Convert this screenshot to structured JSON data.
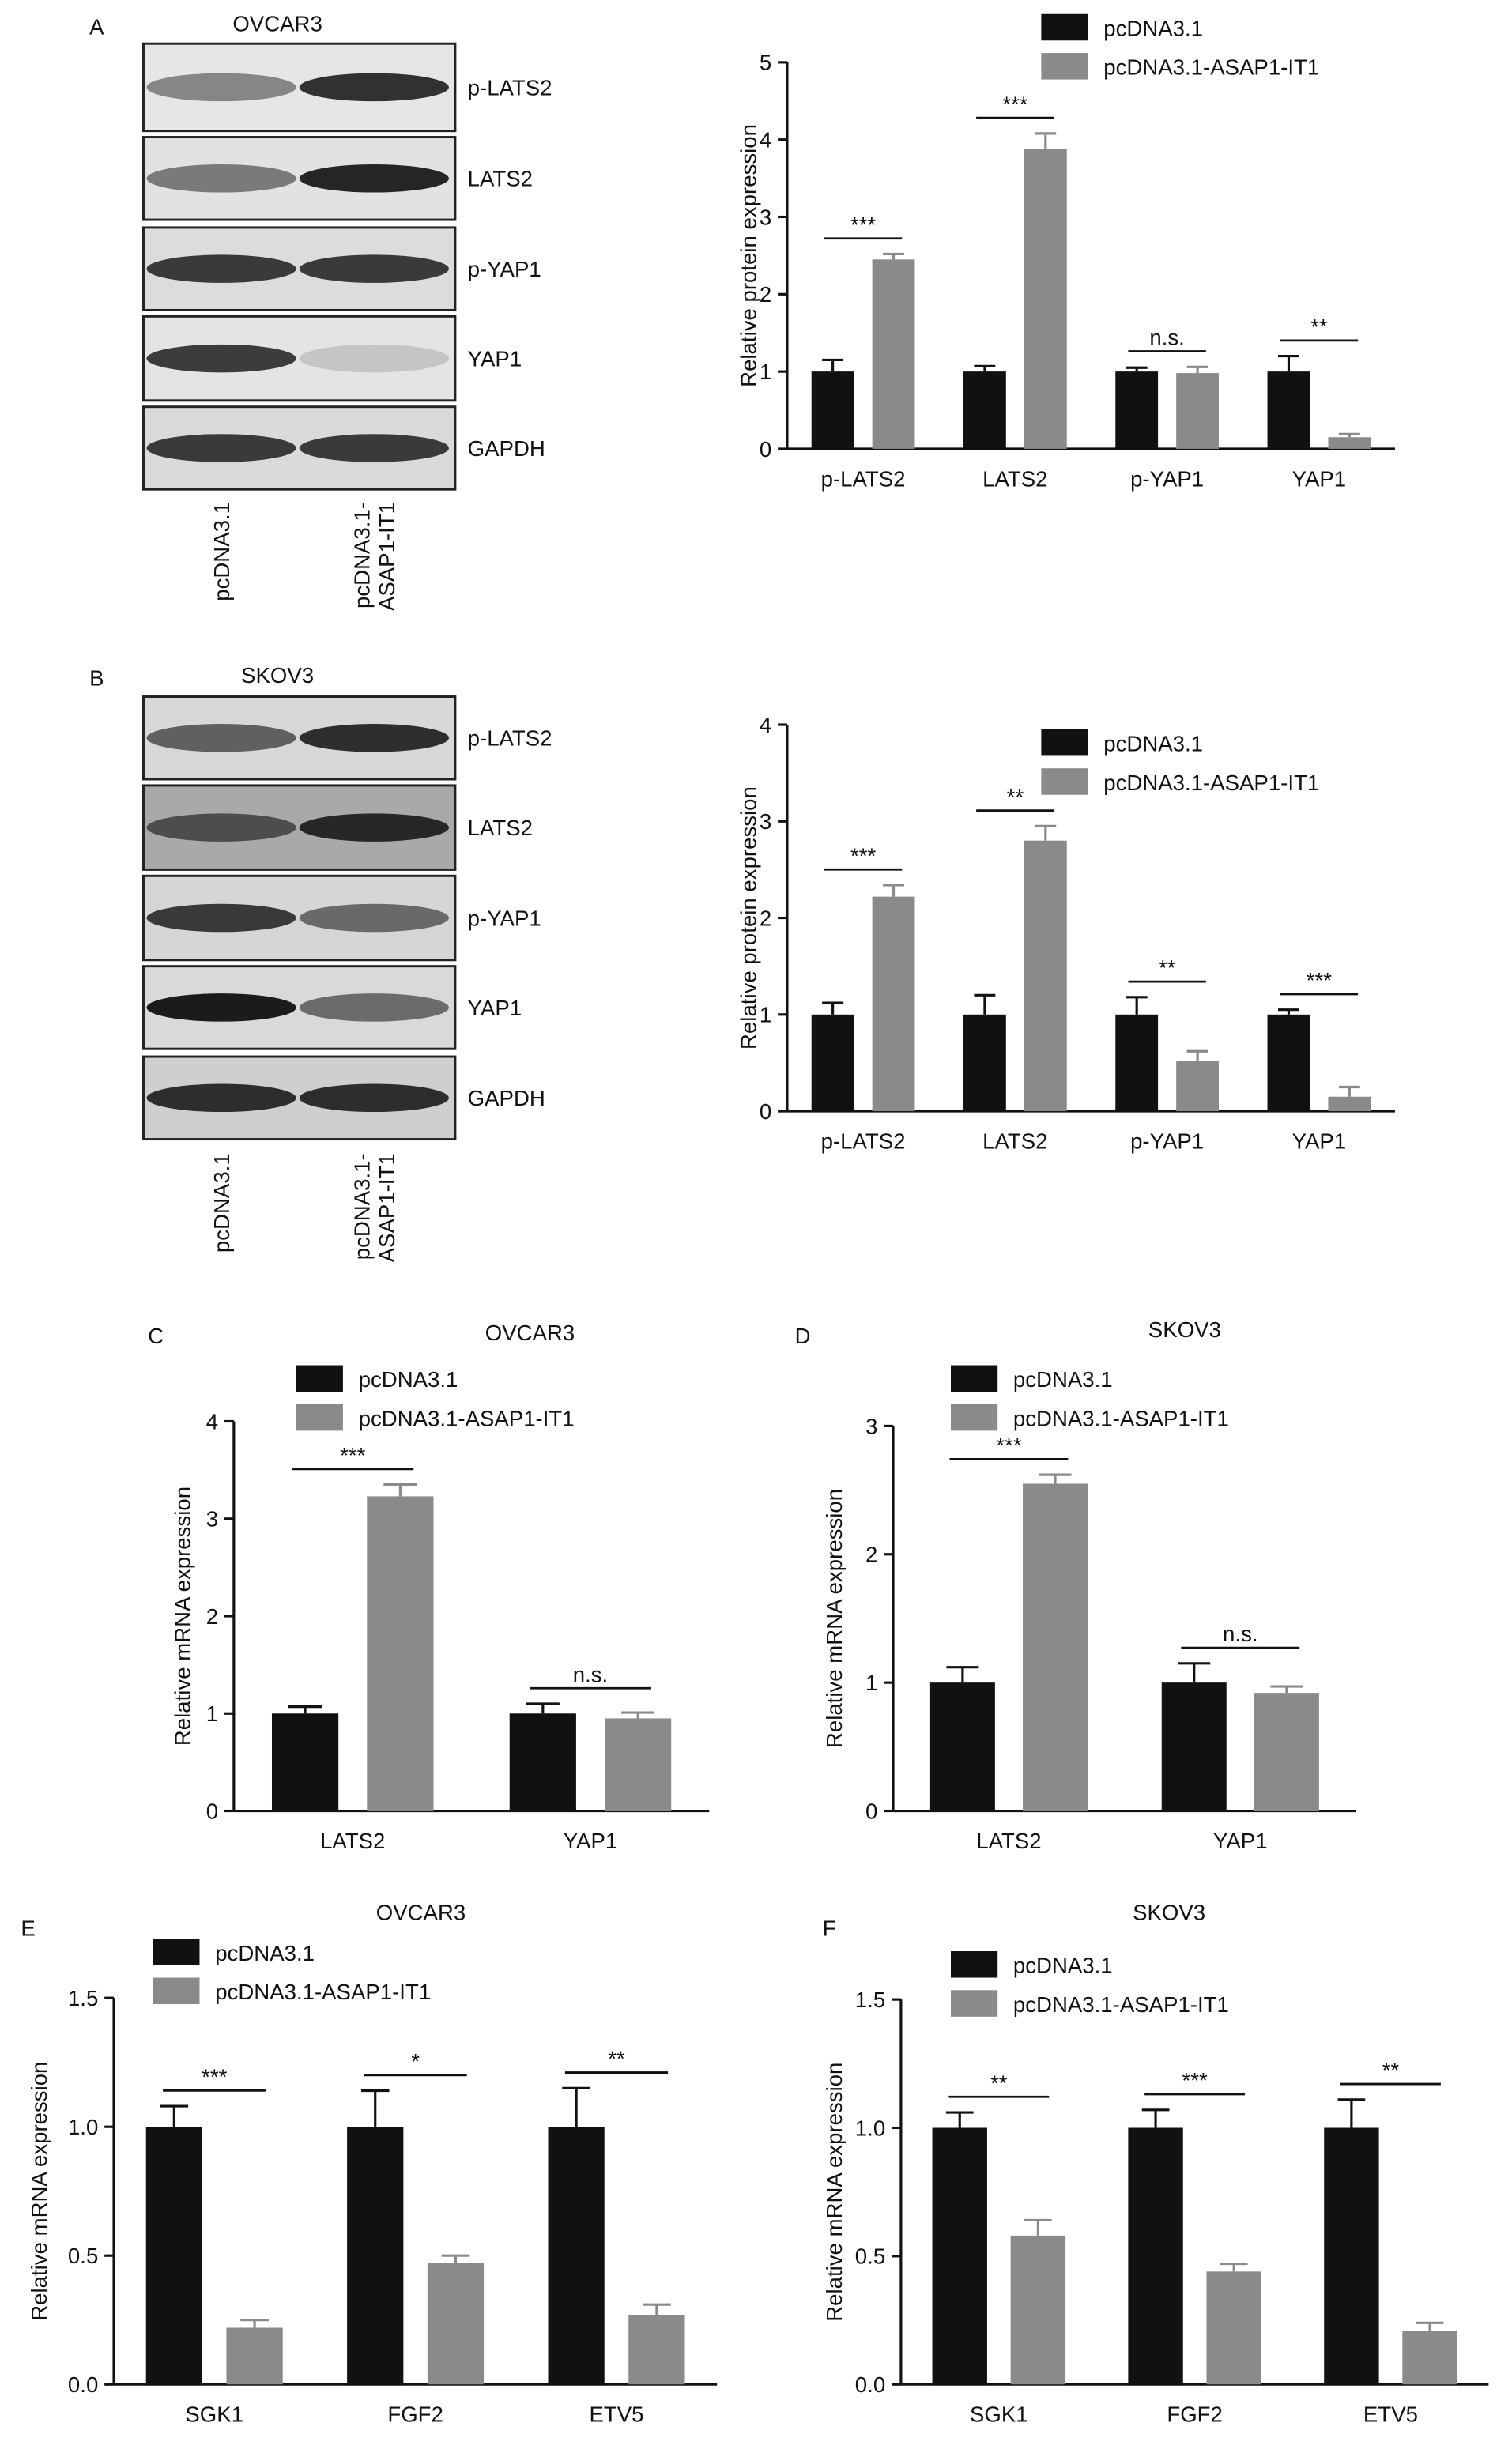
{
  "blots": [
    {
      "panel": "A",
      "cell_line": "OVCAR3",
      "bands": [
        "p-LATS2",
        "LATS2",
        "p-YAP1",
        "YAP1",
        "GAPDH"
      ],
      "lanes": [
        [
          "pcDNA3.1"
        ],
        [
          "pcDNA3.1-",
          "ASAP1-IT1"
        ]
      ]
    },
    {
      "panel": "B",
      "cell_line": "SKOV3",
      "bands": [
        "p-LATS2",
        "LATS2",
        "p-YAP1",
        "YAP1",
        "GAPDH"
      ],
      "lanes": [
        [
          "pcDNA3.1"
        ],
        [
          "pcDNA3.1-",
          "ASAP1-IT1"
        ]
      ]
    }
  ],
  "chart_data": [
    {
      "type": "bar",
      "y_label": "Relative protein expression",
      "categories": [
        "p-LATS2",
        "LATS2",
        "p-YAP1",
        "YAP1"
      ],
      "series": [
        {
          "name": "pcDNA3.1",
          "color": "#111111",
          "values": [
            1,
            1,
            1,
            1
          ],
          "errors": [
            0.15,
            0.07,
            0.05,
            0.2
          ]
        },
        {
          "name": "pcDNA3.1-ASAP1-IT1",
          "color": "#8a8a8a",
          "values": [
            2.45,
            3.88,
            0.98,
            0.15
          ],
          "errors": [
            0.07,
            0.2,
            0.08,
            0.04
          ]
        }
      ],
      "annotations": [
        "***",
        "***",
        "n.s.",
        "**"
      ],
      "ylim": [
        0,
        5
      ],
      "yticks": [
        0,
        1,
        2,
        3,
        4,
        5
      ]
    },
    {
      "type": "bar",
      "y_label": "Relative protein expression",
      "categories": [
        "p-LATS2",
        "LATS2",
        "p-YAP1",
        "YAP1"
      ],
      "series": [
        {
          "name": "pcDNA3.1",
          "color": "#111111",
          "values": [
            1,
            1,
            1,
            1
          ],
          "errors": [
            0.12,
            0.2,
            0.18,
            0.05
          ]
        },
        {
          "name": "pcDNA3.1-ASAP1-IT1",
          "color": "#8a8a8a",
          "values": [
            2.22,
            2.8,
            0.52,
            0.15
          ],
          "errors": [
            0.12,
            0.15,
            0.1,
            0.1
          ]
        }
      ],
      "annotations": [
        "***",
        "**",
        "**",
        "***"
      ],
      "ylim": [
        0,
        4
      ],
      "yticks": [
        0,
        1,
        2,
        3,
        4
      ]
    },
    {
      "type": "bar",
      "panel": "C",
      "title": "OVCAR3",
      "y_label": "Relative mRNA expression",
      "categories": [
        "LATS2",
        "YAP1"
      ],
      "series": [
        {
          "name": "pcDNA3.1",
          "color": "#111111",
          "values": [
            1,
            1
          ],
          "errors": [
            0.07,
            0.1
          ]
        },
        {
          "name": "pcDNA3.1-ASAP1-IT1",
          "color": "#8a8a8a",
          "values": [
            3.23,
            0.95
          ],
          "errors": [
            0.12,
            0.06
          ]
        }
      ],
      "annotations": [
        "***",
        "n.s."
      ],
      "ylim": [
        0,
        4
      ],
      "yticks": [
        0,
        1,
        2,
        3,
        4
      ]
    },
    {
      "type": "bar",
      "panel": "D",
      "title": "SKOV3",
      "y_label": "Relative mRNA expression",
      "categories": [
        "LATS2",
        "YAP1"
      ],
      "series": [
        {
          "name": "pcDNA3.1",
          "color": "#111111",
          "values": [
            1,
            1
          ],
          "errors": [
            0.12,
            0.15
          ]
        },
        {
          "name": "pcDNA3.1-ASAP1-IT1",
          "color": "#8a8a8a",
          "values": [
            2.55,
            0.92
          ],
          "errors": [
            0.07,
            0.05
          ]
        }
      ],
      "annotations": [
        "***",
        "n.s."
      ],
      "ylim": [
        0,
        3
      ],
      "yticks": [
        0,
        1,
        2,
        3
      ]
    },
    {
      "type": "bar",
      "panel": "E",
      "title": "OVCAR3",
      "y_label": "Relative mRNA expression",
      "categories": [
        "SGK1",
        "FGF2",
        "ETV5"
      ],
      "series": [
        {
          "name": "pcDNA3.1",
          "color": "#111111",
          "values": [
            1,
            1,
            1
          ],
          "errors": [
            0.08,
            0.14,
            0.15
          ]
        },
        {
          "name": "pcDNA3.1-ASAP1-IT1",
          "color": "#8a8a8a",
          "values": [
            0.22,
            0.47,
            0.27
          ],
          "errors": [
            0.03,
            0.03,
            0.04
          ]
        }
      ],
      "annotations": [
        "***",
        "*",
        "**"
      ],
      "ylim": [
        0,
        1.5
      ],
      "yticks": [
        {
          "value": 0,
          "label": "0.0"
        },
        0.5,
        {
          "value": 1,
          "label": "1.0"
        },
        1.5
      ]
    },
    {
      "type": "bar",
      "panel": "F",
      "title": "SKOV3",
      "y_label": "Relative mRNA expression",
      "categories": [
        "SGK1",
        "FGF2",
        "ETV5"
      ],
      "series": [
        {
          "name": "pcDNA3.1",
          "color": "#111111",
          "values": [
            1,
            1,
            1
          ],
          "errors": [
            0.06,
            0.07,
            0.11
          ]
        },
        {
          "name": "pcDNA3.1-ASAP1-IT1",
          "color": "#8a8a8a",
          "values": [
            0.58,
            0.44,
            0.21
          ],
          "errors": [
            0.06,
            0.03,
            0.03
          ]
        }
      ],
      "annotations": [
        "**",
        "***",
        "**"
      ],
      "ylim": [
        0,
        1.5
      ],
      "yticks": [
        {
          "value": 0,
          "label": "0.0"
        },
        0.5,
        {
          "value": 1,
          "label": "1.0"
        },
        1.5
      ]
    }
  ]
}
